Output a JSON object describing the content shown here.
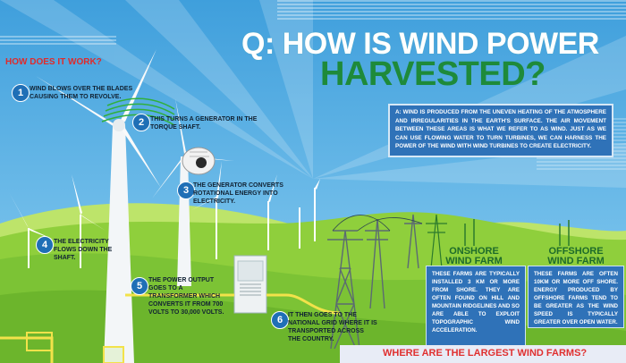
{
  "header": {
    "question_prefix": "Q: HOW IS WIND POWER",
    "question_main": "HARVESTED?",
    "section_label": "HOW DOES IT WORK?"
  },
  "answer": {
    "text": "A: WIND IS PRODUCED FROM THE UNEVEN HEATING OF THE ATMOSPHERE AND IRREGULARITIES IN THE EARTH'S SURFACE. THE AIR MOVEMENT BETWEEN THESE AREAS IS WHAT WE REFER TO AS WIND. JUST AS WE CAN USE FLOWING WATER TO TURN TURBINES, WE CAN HARNESS THE POWER OF THE WIND WITH WIND TURBINES TO CREATE ELECTRICITY."
  },
  "steps": [
    {
      "num": "1",
      "text": "WIND BLOWS OVER THE BLADES CAUSING THEM TO REVOLVE."
    },
    {
      "num": "2",
      "text": "THIS TURNS A GENERATOR IN THE TORQUE SHAFT."
    },
    {
      "num": "3",
      "text": "THE GENERATOR CONVERTS ROTATIONAL ENERGY INTO ELECTRICITY."
    },
    {
      "num": "4",
      "text": "THE ELECTRICITY FLOWS DOWN THE SHAFT."
    },
    {
      "num": "5",
      "text": "THE POWER OUTPUT GOES TO A TRANSFORMER WHICH CONVERTS IT FROM 700 VOLTS TO 30,000 VOLTS."
    },
    {
      "num": "6",
      "text": "IT THEN GOES TO THE NATIONAL GRID WHERE IT IS TRANSPORTED ACROSS THE COUNTRY."
    }
  ],
  "onshore": {
    "title_line1": "ONSHORE",
    "title_line2": "WIND FARM",
    "text": "THESE FARMS ARE TYPICALLY INSTALLED 3 KM OR MORE FROM SHORE. THEY ARE OFTEN FOUND ON HILL AND MOUNTAIN RIDGELINES AND SO ARE ABLE TO EXPLOIT TOPOGRAPHIC WIND ACCELERATION."
  },
  "offshore": {
    "title_line1": "OFFSHORE",
    "title_line2": "WIND FARM",
    "text": "THESE FARMS ARE OFTEN 10KM OR MORE OFF SHORE. ENERGY PRODUCED BY OFFSHORE FARMS TEND TO BE GREATER AS THE WIND SPEED IS TYPICALLY GREATER OVER OPEN WATER."
  },
  "footer": {
    "title": "WHERE ARE THE LARGEST WIND FARMS?"
  },
  "colors": {
    "sky": "#4aa6e0",
    "hill_light": "#9ed640",
    "hill_dark": "#6cbb2e",
    "title_green": "#1e8a3a",
    "accent_red": "#e02a2a",
    "box_blue": "#2f72b8"
  }
}
